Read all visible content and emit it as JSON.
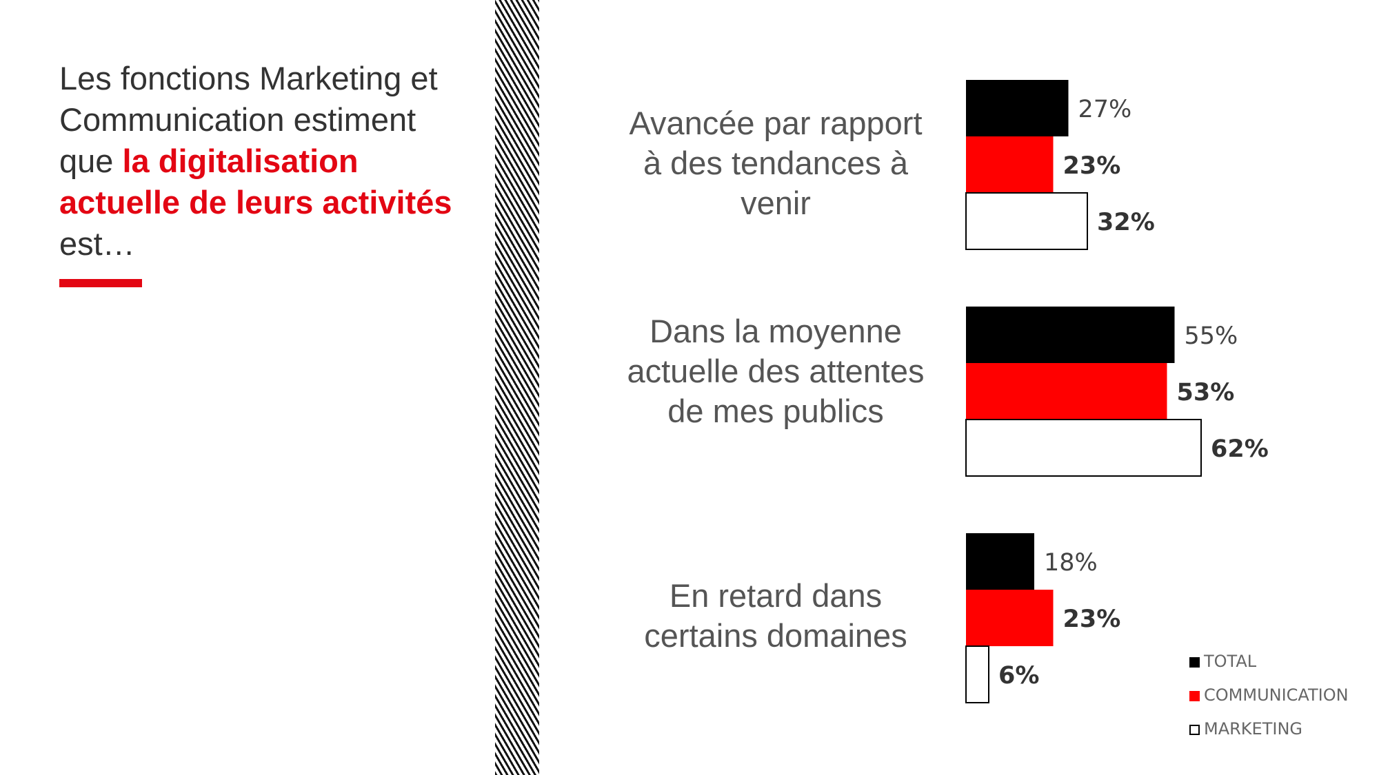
{
  "headline": {
    "part1": "Les fonctions Marketing et Communication estiment que ",
    "highlight": "la digitalisation actuelle de leurs activités",
    "part2": " est…"
  },
  "colors": {
    "total": "#000000",
    "communication": "#ff0000",
    "marketing": "#ffffff",
    "accent": "#e30613"
  },
  "chart_data": {
    "type": "bar",
    "orientation": "horizontal",
    "categories": [
      "Avancée par rapport à des tendances à venir",
      "Dans la moyenne actuelle des attentes de mes publics",
      "En retard dans certains domaines"
    ],
    "series": [
      {
        "name": "TOTAL",
        "values": [
          27,
          55,
          18
        ],
        "labels": [
          "27%",
          "55%",
          "18%"
        ]
      },
      {
        "name": "COMMUNICATION",
        "values": [
          23,
          53,
          23
        ],
        "labels": [
          "23%",
          "53%",
          "23%"
        ]
      },
      {
        "name": "MARKETING",
        "values": [
          32,
          62,
          6
        ],
        "labels": [
          "32%",
          "62%",
          "6%"
        ]
      }
    ],
    "xlim": [
      0,
      100
    ],
    "grid": false,
    "legend": "bottom-right"
  }
}
